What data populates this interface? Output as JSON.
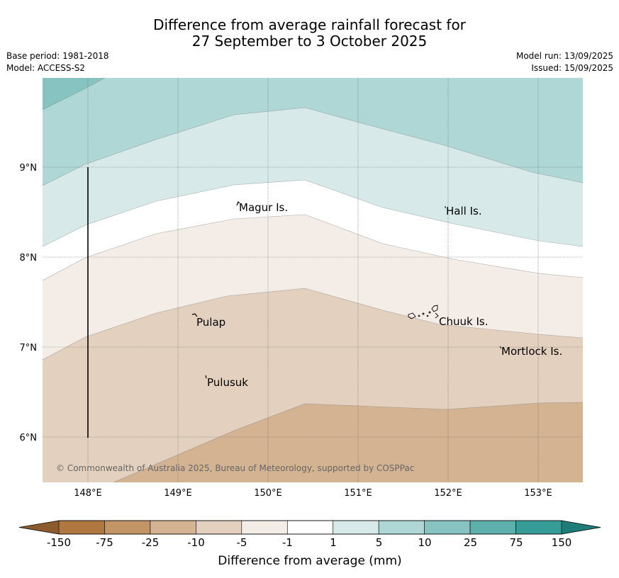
{
  "header": {
    "title_line1": "Difference from average rainfall forecast for",
    "title_line2": "27 September to 3 October 2025",
    "base_period": "Base period: 1981-2018",
    "model": "Model: ACCESS-S2",
    "model_run": "Model run: 13/09/2025",
    "issued": "Issued: 15/09/2025"
  },
  "map": {
    "x_ticks": [
      {
        "value": 148,
        "label": "148°E"
      },
      {
        "value": 149,
        "label": "149°E"
      },
      {
        "value": 150,
        "label": "150°E"
      },
      {
        "value": 151,
        "label": "151°E"
      },
      {
        "value": 152,
        "label": "152°E"
      },
      {
        "value": 153,
        "label": "153°E"
      }
    ],
    "y_ticks": [
      {
        "value": 9,
        "label": "9°N"
      },
      {
        "value": 8,
        "label": "8°N"
      },
      {
        "value": 7,
        "label": "7°N"
      },
      {
        "value": 6,
        "label": "6°N"
      }
    ],
    "places": [
      {
        "name": "Magur Is."
      },
      {
        "name": "Hall Is."
      },
      {
        "name": "Pulap"
      },
      {
        "name": "Chuuk Is."
      },
      {
        "name": "Mortlock Is."
      },
      {
        "name": "Pulusuk"
      }
    ],
    "copyright": "© Commonwealth of Australia 2025, Bureau of Meteorology, supported by COSPPac"
  },
  "colorbar": {
    "labels": [
      "-150",
      "-75",
      "-25",
      "-10",
      "-5",
      "-1",
      "1",
      "5",
      "10",
      "25",
      "75",
      "150"
    ],
    "colors": [
      "#b07840",
      "#c39466",
      "#d4b393",
      "#e3d0be",
      "#f4ece7",
      "#ffffff",
      "#d7eae9",
      "#afd7d6",
      "#87c3c1",
      "#5eb0ad",
      "#369c98"
    ],
    "under_color": "#8c5a2c",
    "over_color": "#1e7d79",
    "title": "Difference from average (mm)"
  },
  "legend_colors": {
    "dry_strong": "#d4b393",
    "dry": "#e3d0be",
    "dry_light": "#f4ece7",
    "neutral": "#ffffff",
    "wet_light": "#d7eae9",
    "wet": "#afd7d6",
    "wet_strong": "#87c3c1"
  }
}
